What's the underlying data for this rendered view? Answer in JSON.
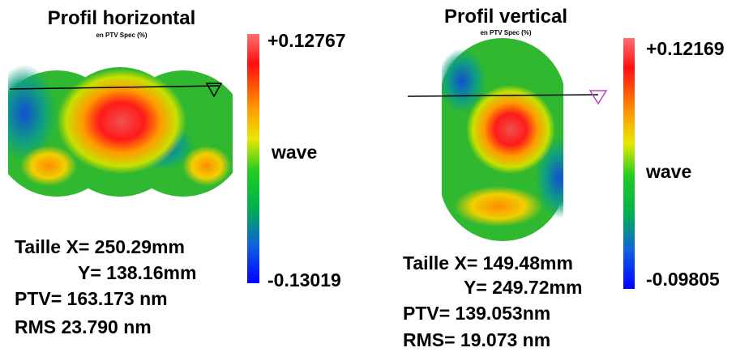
{
  "panels": [
    {
      "title": "Profil horizontal",
      "subtitle": "en PTV Spec (%)",
      "scale_max": "+0.12767",
      "scale_unit": "wave",
      "scale_min": "-0.13019",
      "stats": [
        "Taille X= 250.29mm",
        "Y= 138.16mm",
        "PTV= 163.173 nm",
        "RMS 23.790 nm"
      ]
    },
    {
      "title": "Profil vertical",
      "subtitle": "en PTV Spec (%)",
      "scale_max": "+0.12169",
      "scale_unit": "wave",
      "scale_min": "-0.09805",
      "stats": [
        "Taille X= 149.48mm",
        "Y= 249.72mm",
        "PTV= 139.053nm",
        "RMS= 19.073 nm"
      ]
    }
  ]
}
